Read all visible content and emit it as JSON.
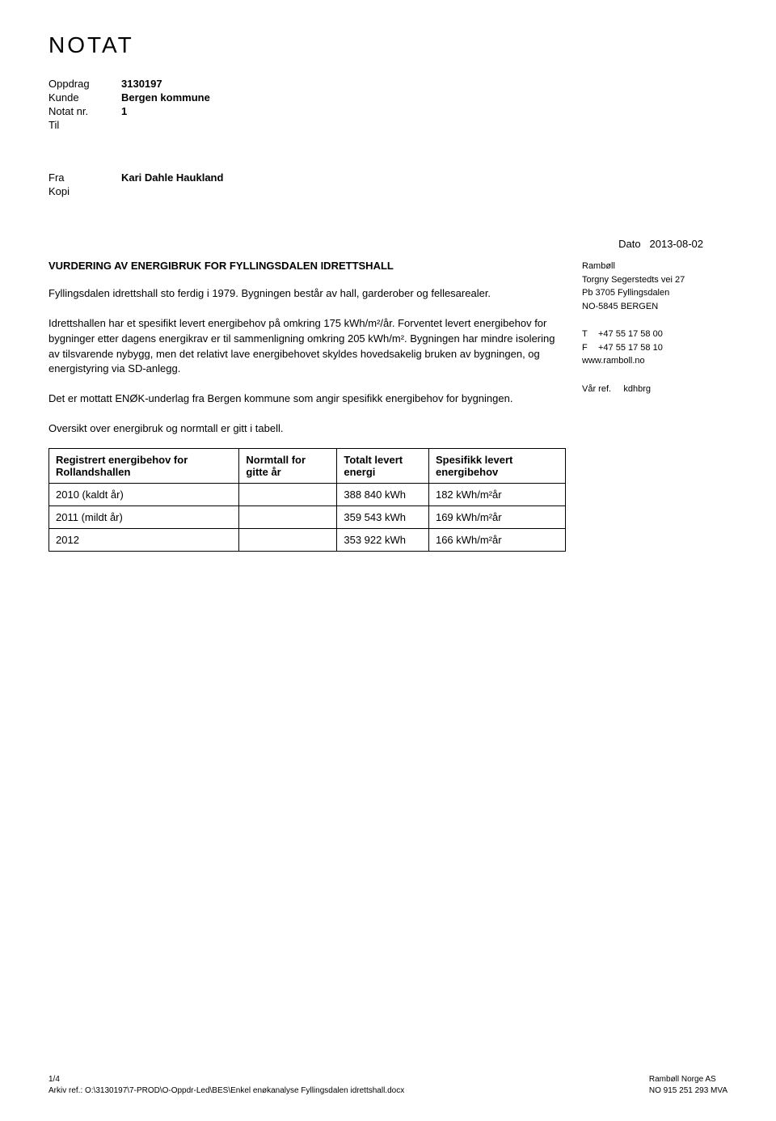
{
  "doc_title": "NOTAT",
  "meta": {
    "oppdrag_label": "Oppdrag",
    "oppdrag_value": "3130197",
    "kunde_label": "Kunde",
    "kunde_value": "Bergen kommune",
    "notat_label": "Notat nr.",
    "notat_value": "1",
    "til_label": "Til",
    "til_value": ""
  },
  "from": {
    "fra_label": "Fra",
    "fra_value": "Kari Dahle Haukland",
    "kopi_label": "Kopi",
    "kopi_value": ""
  },
  "date": {
    "label": "Dato",
    "value": "2013-08-02"
  },
  "heading": "VURDERING AV ENERGIBRUK FOR FYLLINGSDALEN IDRETTSHALL",
  "paragraphs": {
    "p1": "Fyllingsdalen idrettshall sto ferdig i 1979. Bygningen består av hall, garderober og fellesarealer.",
    "p2": "Idrettshallen har et spesifikt levert energibehov på omkring 175 kWh/m²/år. Forventet levert energibehov for bygninger etter dagens energikrav er til sammenligning omkring 205 kWh/m². Bygningen har mindre isolering av tilsvarende nybygg, men det relativt lave energibehovet skyldes hovedsakelig bruken av bygningen, og energistyring via SD-anlegg.",
    "p3": "Det er mottatt ENØK-underlag fra Bergen kommune som angir spesifikk energibehov for bygningen.",
    "table_intro": "Oversikt over energibruk og normtall er gitt i tabell."
  },
  "sidebar": {
    "company": "Rambøll",
    "addr1": "Torgny Segerstedts vei 27",
    "addr2": "Pb 3705 Fyllingsdalen",
    "addr3": "NO-5845 BERGEN",
    "phone_t_prefix": "T",
    "phone_t": "+47 55 17 58 00",
    "phone_f_prefix": "F",
    "phone_f": "+47 55 17 58 10",
    "web": "www.ramboll.no",
    "ref_label": "Vår ref.",
    "ref_value": "kdhbrg"
  },
  "table": {
    "headers": [
      "Registrert energibehov for Rollandshallen",
      "Normtall for gitte år",
      "Totalt levert energi",
      "Spesifikk levert energibehov"
    ],
    "rows": [
      [
        "2010 (kaldt år)",
        "",
        "388 840 kWh",
        "182 kWh/m²år"
      ],
      [
        "2011 (mildt år)",
        "",
        "359 543 kWh",
        "169 kWh/m²år"
      ],
      [
        "2012",
        "",
        "353 922 kWh",
        "166 kWh/m²år"
      ]
    ]
  },
  "footer": {
    "page": "1/4",
    "arkiv": "Arkiv ref.: O:\\3130197\\7-PROD\\O-Oppdr-Led\\BES\\Enkel enøkanalyse Fyllingsdalen idrettshall.docx",
    "company": "Rambøll Norge AS",
    "orgnr": "NO 915 251 293 MVA"
  }
}
